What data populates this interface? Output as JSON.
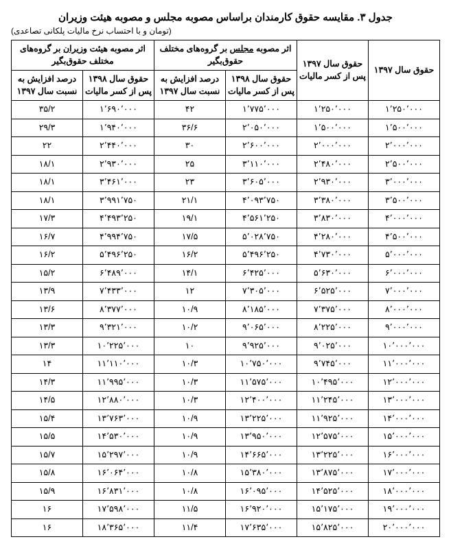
{
  "title": "جدول ۳. مقایسه حقوق کارمندان براساس مصوبه مجلس و مصوبه هیئت وزیران",
  "subtitle": "(تومان و با احتساب نرخ مالیات پلکانی تصاعدی)",
  "headers": {
    "col1": "حقوق سال ۱۳۹۷",
    "col2": "حقوق سال ۱۳۹۷ پس از کسر مالیات",
    "group_majles": "اثر مصوبه",
    "group_majles_u": "مجلس",
    "group_majles_rest": "بر گروه‌های مختلف حقوق‌بگیر",
    "group_vaziran": "اثر مصوبه هیئت",
    "group_vaziran_u": "وزیران",
    "group_vaziran_rest": "بر گروه‌های مختلف حقوق‌بگیر",
    "sub1": "حقوق سال ۱۳۹۸ پس از کسر مالیات",
    "sub2": "درصد افزایش به نسبت سال ۱۳۹۷"
  },
  "rows": [
    [
      "۱٬۲۵۰٬۰۰۰",
      "۱٬۲۵۰٬۰۰۰",
      "۱٬۷۷۵٬۰۰۰",
      "۴۲",
      "۱٬۶۹۰٬۰۰۰",
      "۳۵/۲"
    ],
    [
      "۱٬۵۰۰٬۰۰۰",
      "۱٬۵۰۰٬۰۰۰",
      "۲٬۰۵۰٬۰۰۰",
      "۳۶/۶",
      "۱٬۹۴۰٬۰۰۰",
      "۲۹/۳"
    ],
    [
      "۲٬۰۰۰٬۰۰۰",
      "۲٬۰۰۰٬۰۰۰",
      "۲٬۶۰۰٬۰۰۰",
      "۳۰",
      "۲٬۴۴۰٬۰۰۰",
      "۲۲"
    ],
    [
      "۲٬۵۰۰٬۰۰۰",
      "۲٬۴۸۰٬۰۰۰",
      "۳٬۱۱۰٬۰۰۰",
      "۲۵",
      "۲٬۹۳۰٬۰۰۰",
      "۱۸/۱"
    ],
    [
      "۳٬۰۰۰٬۰۰۰",
      "۲٬۹۳۰٬۰۰۰",
      "۳٬۶۰۵٬۰۰۰",
      "۲۳",
      "۳٬۴۶۱٬۰۰۰",
      "۱۸/۱"
    ],
    [
      "۳٬۵۰۰٬۰۰۰",
      "۳٬۳۸۰٬۰۰۰",
      "۴٬۰۹۳٬۷۵۰",
      "۲۱/۱",
      "۳٬۹۹۱٬۷۵۰",
      "۱۸/۱"
    ],
    [
      "۴٬۰۰۰٬۰۰۰",
      "۳٬۸۳۰٬۰۰۰",
      "۴٬۵۶۱٬۲۵۰",
      "۱۹/۱",
      "۴٬۴۹۳٬۲۵۰",
      "۱۷/۳"
    ],
    [
      "۴٬۵۰۰٬۰۰۰",
      "۴٬۲۸۰٬۰۰۰",
      "۵٬۰۲۸٬۷۵۰",
      "۱۷/۵",
      "۴٬۹۹۴٬۷۵۰",
      "۱۶/۷"
    ],
    [
      "۵٬۰۰۰٬۰۰۰",
      "۴٬۷۳۰٬۰۰۰",
      "۵٬۴۹۶٬۲۵۰",
      "۱۶/۲",
      "۵٬۴۹۶٬۲۵۰",
      "۱۶/۲"
    ],
    [
      "۶٬۰۰۰٬۰۰۰",
      "۵٬۶۳۰٬۰۰۰",
      "۶٬۴۲۵٬۰۰۰",
      "۱۴/۱",
      "۶٬۴۸۹٬۰۰۰",
      "۱۵/۲"
    ],
    [
      "۷٬۰۰۰٬۰۰۰",
      "۶٬۵۲۵٬۰۰۰",
      "۷٬۳۰۵٬۰۰۰",
      "۱۲",
      "۷٬۴۳۳٬۰۰۰",
      "۱۳/۹"
    ],
    [
      "۸٬۰۰۰٬۰۰۰",
      "۷٬۳۷۵٬۰۰۰",
      "۸٬۱۸۵٬۰۰۰",
      "۱۰/۹",
      "۸٬۳۷۷٬۰۰۰",
      "۱۳/۶"
    ],
    [
      "۹٬۰۰۰٬۰۰۰",
      "۸٬۲۲۵٬۰۰۰",
      "۹٬۰۶۵٬۰۰۰",
      "۱۰/۲",
      "۹٬۳۲۱٬۰۰۰",
      "۱۳/۳"
    ],
    [
      "۱۰٬۰۰۰٬۰۰۰",
      "۹٬۰۲۵٬۰۰۰",
      "۹٬۹۲۵٬۰۰۰",
      "۱۰",
      "۱۰٬۲۲۵٬۰۰۰",
      "۱۳/۳"
    ],
    [
      "۱۱٬۰۰۰٬۰۰۰",
      "۹٬۷۴۵٬۰۰۰",
      "۱۰٬۷۵۰٬۰۰۰",
      "۱۰/۳",
      "۱۱٬۱۱۰٬۰۰۰",
      "۱۴"
    ],
    [
      "۱۲٬۰۰۰٬۰۰۰",
      "۱۰٬۴۹۵٬۰۰۰",
      "۱۱٬۵۷۵٬۰۰۰",
      "۱۰/۳",
      "۱۱٬۹۹۵٬۰۰۰",
      "۱۴/۳"
    ],
    [
      "۱۳٬۰۰۰٬۰۰۰",
      "۱۱٬۲۴۵٬۰۰۰",
      "۱۲٬۴۰۰٬۰۰۰",
      "۱۰/۳",
      "۱۲٬۸۸۰٬۰۰۰",
      "۱۴/۵"
    ],
    [
      "۱۴٬۰۰۰٬۰۰۰",
      "۱۱٬۹۲۵٬۰۰۰",
      "۱۳٬۲۲۵٬۰۰۰",
      "۱۰/۹",
      "۱۳٬۷۶۳٬۰۰۰",
      "۱۵/۴"
    ],
    [
      "۱۵٬۰۰۰٬۰۰۰",
      "۱۲٬۵۷۵٬۰۰۰",
      "۱۳٬۹۵۰٬۰۰۰",
      "۱۰/۹",
      "۱۴٬۵۳۰٬۰۰۰",
      "۱۵/۵"
    ],
    [
      "۱۶٬۰۰۰٬۰۰۰",
      "۱۳٬۲۲۵٬۰۰۰",
      "۱۴٬۶۶۵٬۰۰۰",
      "۱۰/۹",
      "۱۵٬۲۹۷٬۰۰۰",
      "۱۵/۷"
    ],
    [
      "۱۷٬۰۰۰٬۰۰۰",
      "۱۳٬۸۷۵٬۰۰۰",
      "۱۵٬۳۸۰٬۰۰۰",
      "۱۰/۸",
      "۱۶٬۰۶۴٬۰۰۰",
      "۱۵/۸"
    ],
    [
      "۱۸٬۰۰۰٬۰۰۰",
      "۱۴٬۵۲۵٬۰۰۰",
      "۱۶٬۰۹۵٬۰۰۰",
      "۱۰/۸",
      "۱۶٬۸۳۱٬۰۰۰",
      "۱۵/۹"
    ],
    [
      "۱۹٬۰۰۰٬۰۰۰",
      "۱۵٬۱۷۵٬۰۰۰",
      "۱۶٬۹۲۰٬۰۰۰",
      "۱۱/۵",
      "۱۷٬۵۹۸٬۰۰۰",
      "۱۶"
    ],
    [
      "۲۰٬۰۰۰٬۰۰۰",
      "۱۵٬۸۲۵٬۰۰۰",
      "۱۷٬۶۳۵٬۰۰۰",
      "۱۱/۴",
      "۱۸٬۳۶۵٬۰۰۰",
      "۱۶"
    ]
  ]
}
